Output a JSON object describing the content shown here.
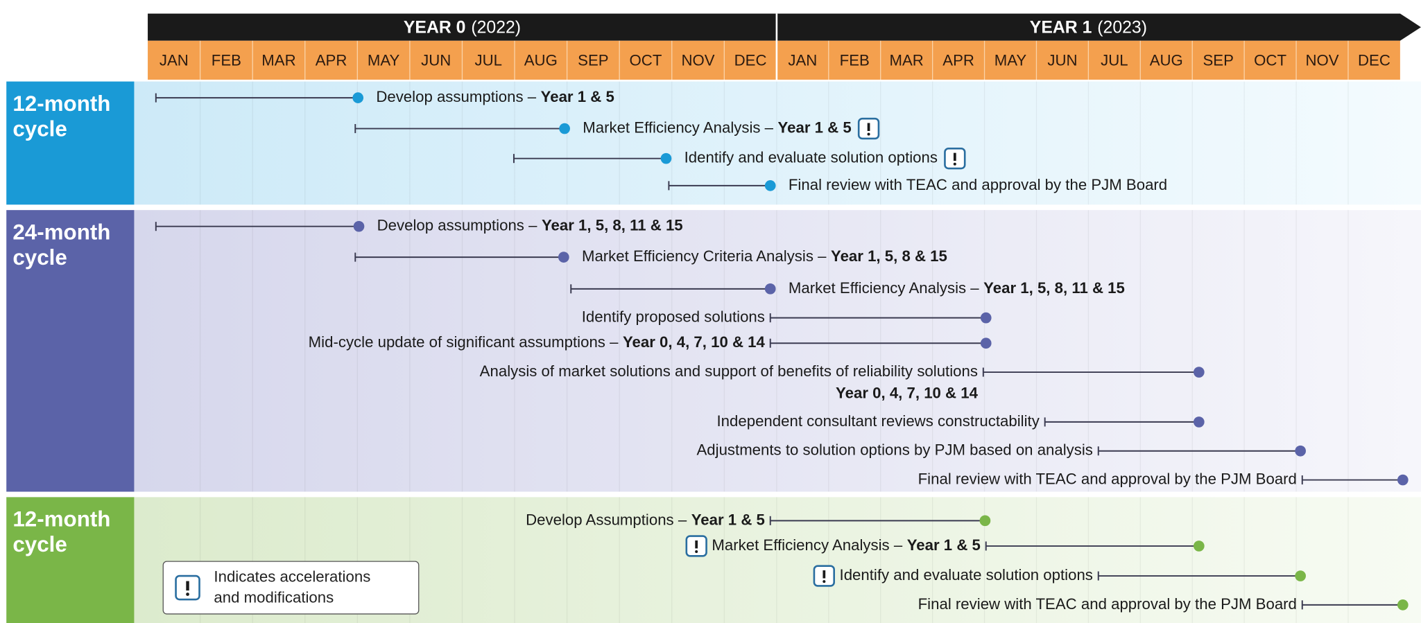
{
  "header": {
    "years": [
      {
        "label": "YEAR 0",
        "year": "(2022)",
        "months": [
          "JAN",
          "FEB",
          "MAR",
          "APR",
          "MAY",
          "JUN",
          "JUL",
          "AUG",
          "SEP",
          "OCT",
          "NOV",
          "DEC"
        ]
      },
      {
        "label": "YEAR 1",
        "year": "(2023)",
        "months": [
          "JAN",
          "FEB",
          "MAR",
          "APR",
          "MAY",
          "JUN",
          "JUL",
          "AUG",
          "SEP",
          "OCT",
          "NOV",
          "DEC"
        ]
      }
    ]
  },
  "sections": [
    {
      "label": [
        "12-month",
        "cycle"
      ],
      "tasks": [
        {
          "text": "Develop assumptions –",
          "bold": "Year 1 & 5"
        },
        {
          "text": "Market Efficiency Analysis –",
          "bold": "Year 1 & 5",
          "alert": "after"
        },
        {
          "text": "Identify and evaluate solution options",
          "alert": "after"
        },
        {
          "text": "Final review with TEAC and approval by the PJM Board"
        }
      ]
    },
    {
      "label": [
        "24-month",
        "cycle"
      ],
      "tasks": [
        {
          "text": "Develop assumptions –",
          "bold": "Year 1, 5, 8, 11 & 15"
        },
        {
          "text": "Market Efficiency Criteria Analysis –",
          "bold": "Year 1, 5, 8  & 15"
        },
        {
          "text": "Market Efficiency Analysis –",
          "bold": "Year 1, 5, 8, 11 & 15"
        },
        {
          "text": "Identify proposed solutions"
        },
        {
          "text": "Mid-cycle update of significant assumptions –",
          "bold": "Year 0, 4, 7, 10 & 14"
        },
        {
          "text": "Analysis of market solutions and support of benefits of reliability solutions",
          "note": "Year 0, 4, 7, 10 & 14"
        },
        {
          "text": "Independent consultant reviews constructability"
        },
        {
          "text": "Adjustments to solution options by PJM based on analysis"
        },
        {
          "text": "Final review with TEAC and approval by the PJM Board"
        }
      ]
    },
    {
      "label": [
        "12-month",
        "cycle"
      ],
      "tasks": [
        {
          "text": "Develop Assumptions –",
          "bold": "Year 1 & 5"
        },
        {
          "text": "Market Efficiency Analysis –",
          "bold": "Year 1 & 5",
          "alert": "before"
        },
        {
          "text": "Identify and evaluate solution options",
          "alert": "before"
        },
        {
          "text": "Final review with TEAC and approval by the PJM Board"
        }
      ]
    }
  ],
  "legend": {
    "lines": [
      "Indicates accelerations",
      "and modifications"
    ]
  }
}
